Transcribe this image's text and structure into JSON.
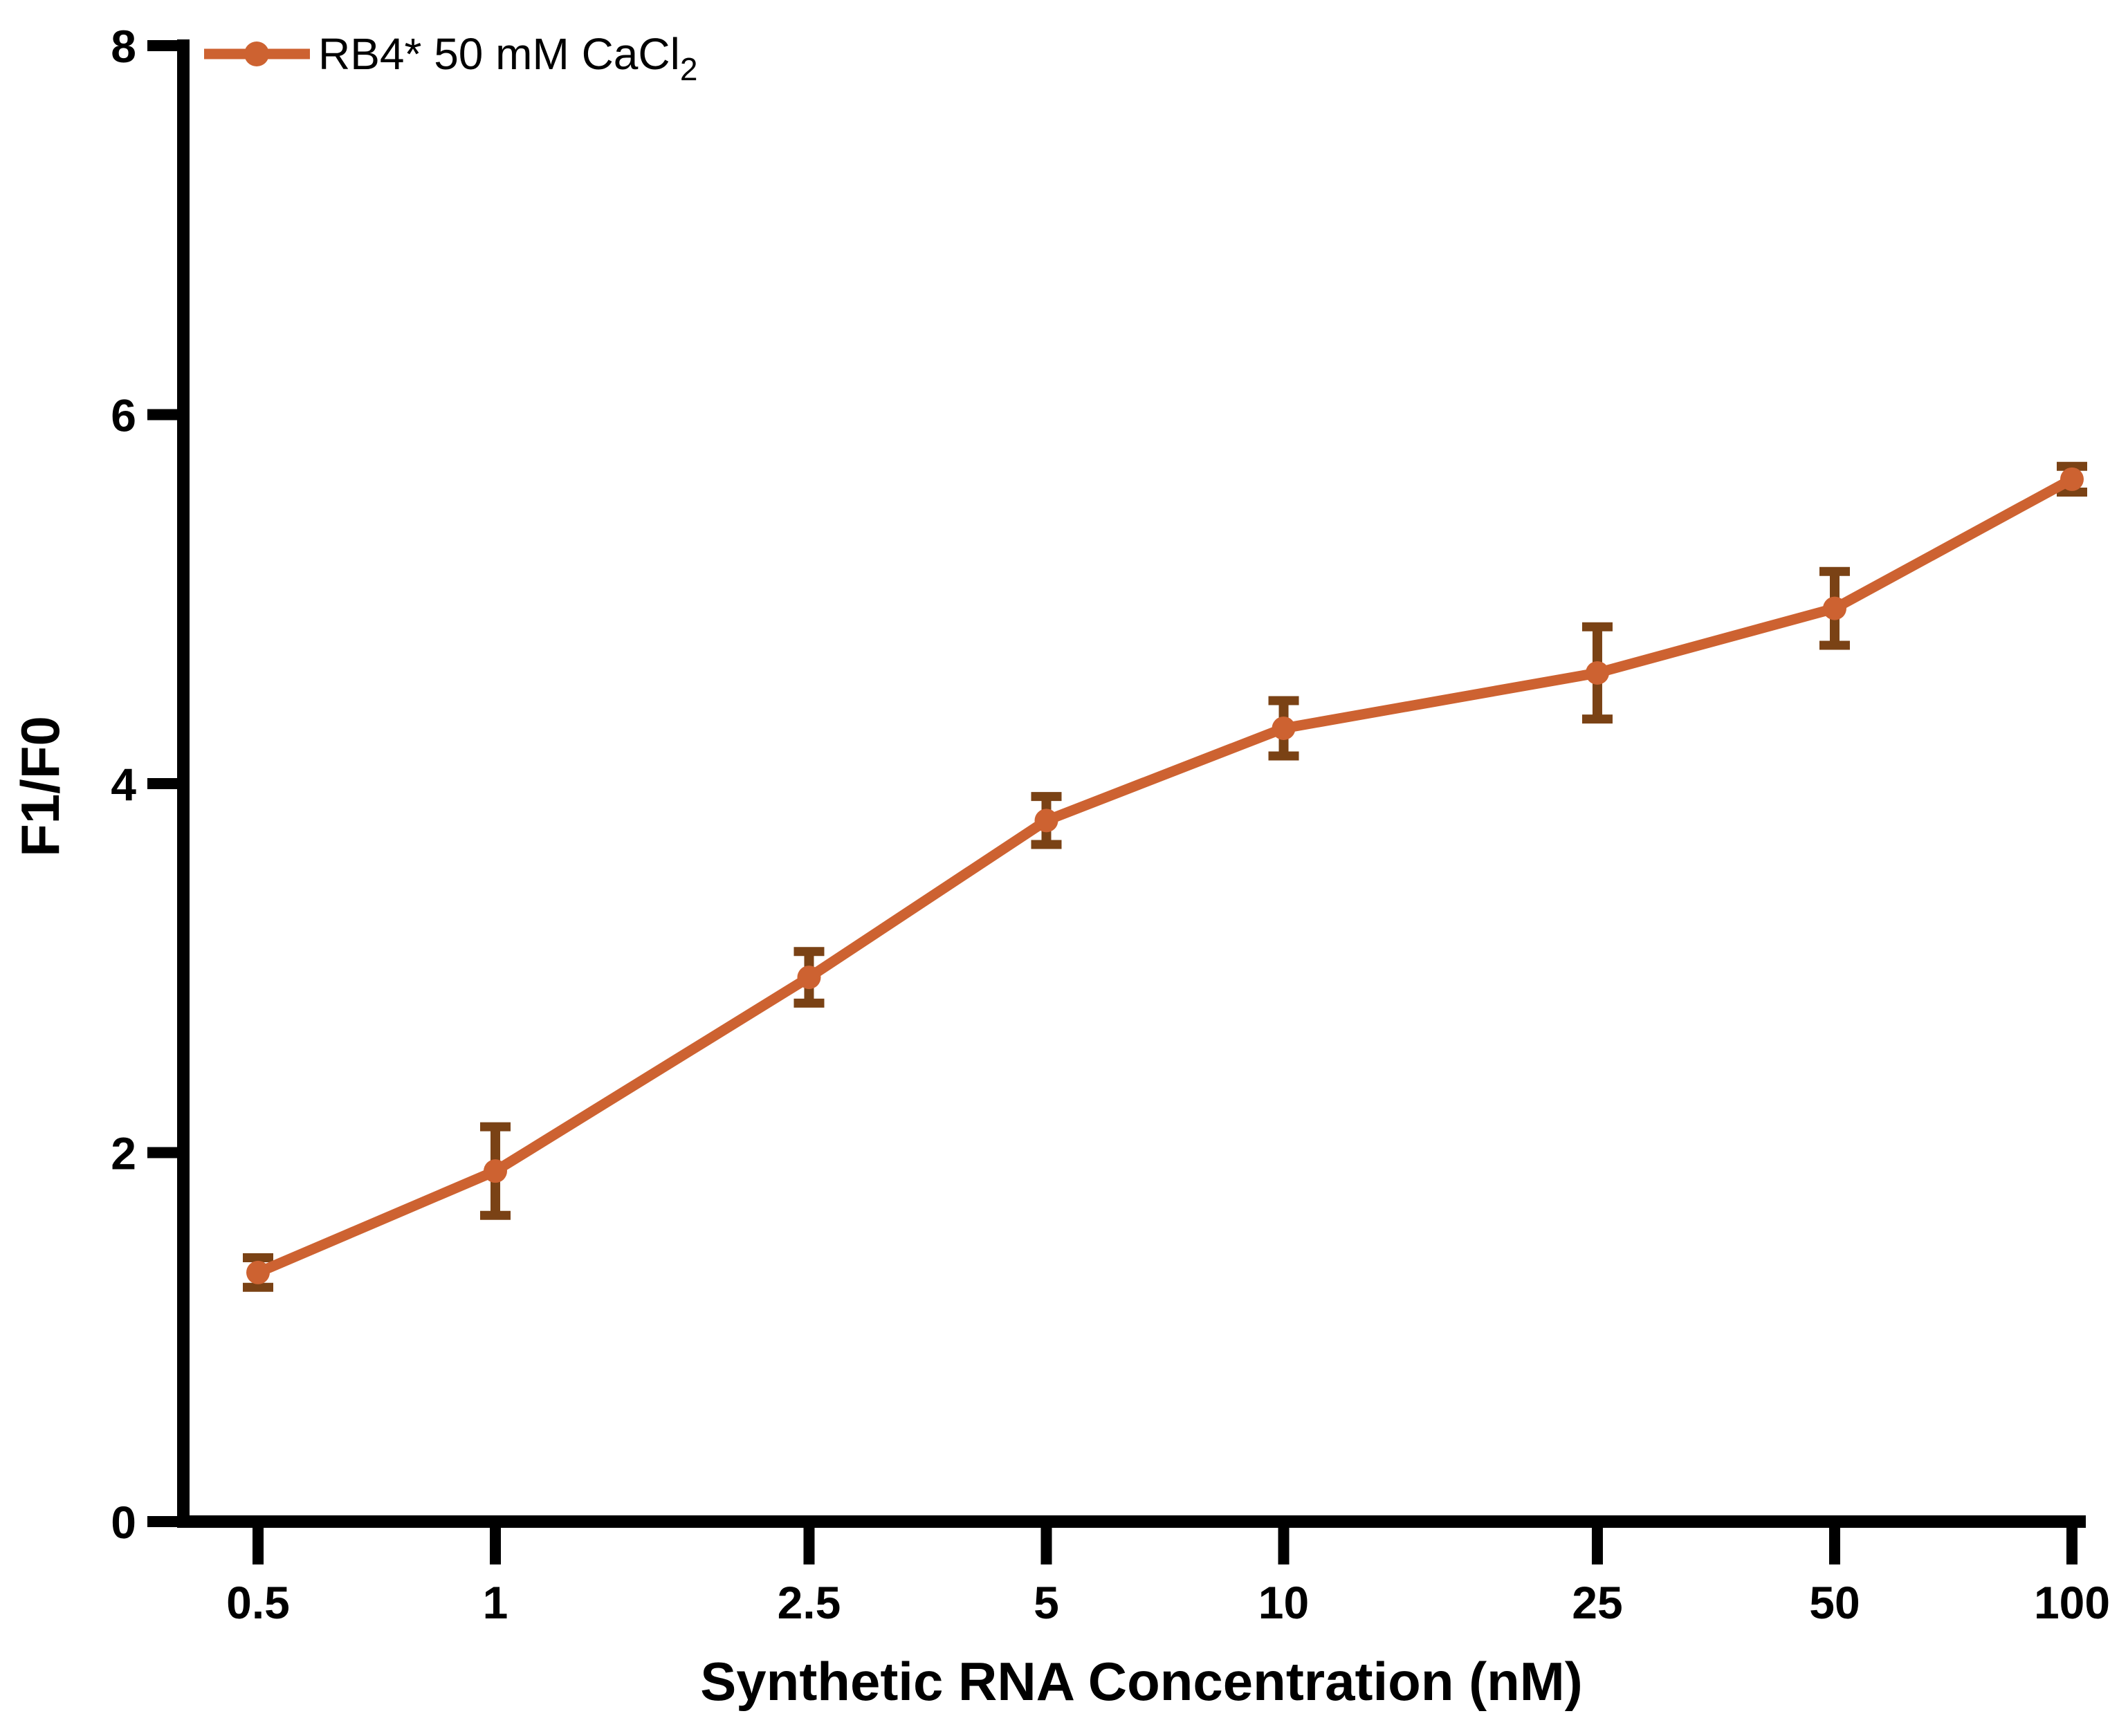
{
  "chart_data": {
    "type": "line",
    "title": "",
    "xlabel": "Synthetic RNA Concentration (nM)",
    "ylabel": "F1/F0",
    "x_scale": "log",
    "x": [
      0.5,
      1,
      2.5,
      5,
      10,
      25,
      50,
      100
    ],
    "xticklabels": [
      "0.5",
      "1",
      "2.5",
      "5",
      "10",
      "25",
      "50",
      "100"
    ],
    "xlim": [
      0.5,
      100
    ],
    "ylim": [
      0,
      8
    ],
    "yticks": [
      0,
      2,
      4,
      6,
      8
    ],
    "yticklabels": [
      "0",
      "2",
      "4",
      "6",
      "8"
    ],
    "grid": false,
    "legend_position": "top-left-inside",
    "axis_color": "#000000",
    "series": [
      {
        "name": "RB4* 50 mM CaCl2",
        "legend_label": "RB4* 50 mM CaCl",
        "legend_label_subscript": "2",
        "marker": "circle",
        "line_color": "#CD6231",
        "error_color": "#7A4215",
        "values": [
          1.35,
          1.9,
          2.95,
          3.8,
          4.3,
          4.6,
          4.95,
          5.65
        ],
        "errors": [
          0.08,
          0.24,
          0.14,
          0.13,
          0.15,
          0.25,
          0.2,
          0.07
        ]
      }
    ]
  }
}
